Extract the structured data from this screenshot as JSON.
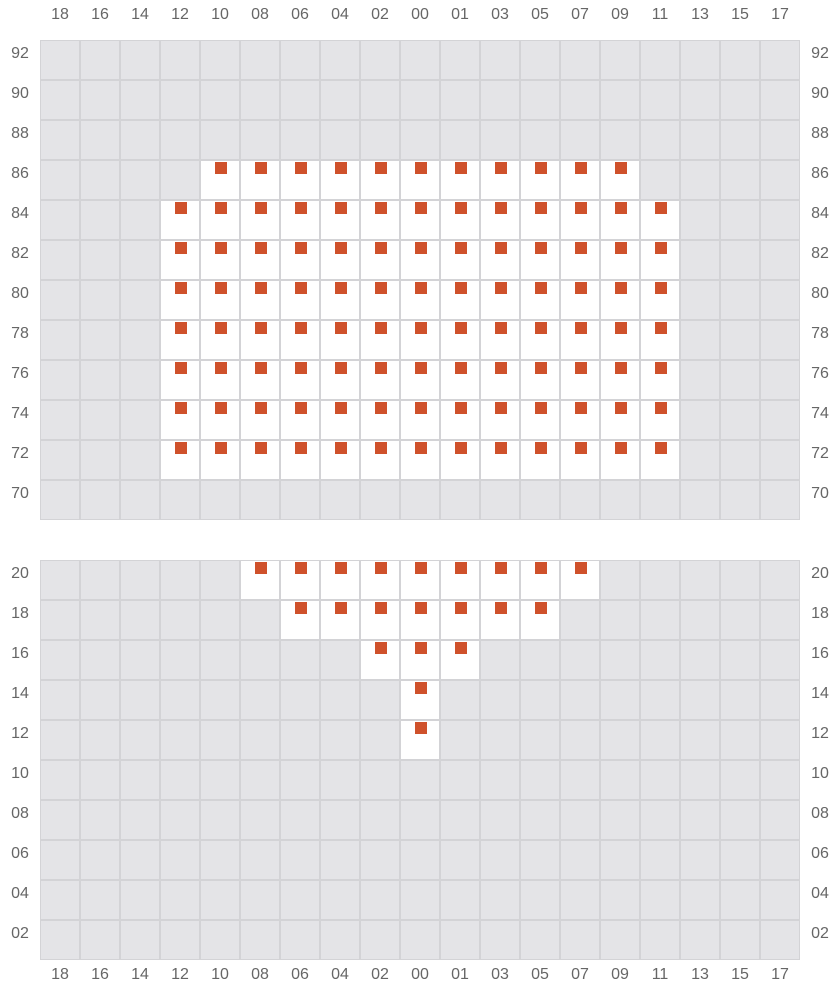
{
  "columns": [
    "18",
    "16",
    "14",
    "12",
    "10",
    "08",
    "06",
    "04",
    "02",
    "00",
    "01",
    "03",
    "05",
    "07",
    "09",
    "11",
    "13",
    "15",
    "17"
  ],
  "marker_color": "#cf512b",
  "sections": [
    {
      "name": "upper",
      "rows": [
        {
          "label": "92",
          "seats": []
        },
        {
          "label": "90",
          "seats": []
        },
        {
          "label": "88",
          "seats": []
        },
        {
          "label": "86",
          "seats": [
            "10",
            "08",
            "06",
            "04",
            "02",
            "00",
            "01",
            "03",
            "05",
            "07",
            "09"
          ]
        },
        {
          "label": "84",
          "seats": [
            "12",
            "10",
            "08",
            "06",
            "04",
            "02",
            "00",
            "01",
            "03",
            "05",
            "07",
            "09",
            "11"
          ]
        },
        {
          "label": "82",
          "seats": [
            "12",
            "10",
            "08",
            "06",
            "04",
            "02",
            "00",
            "01",
            "03",
            "05",
            "07",
            "09",
            "11"
          ]
        },
        {
          "label": "80",
          "seats": [
            "12",
            "10",
            "08",
            "06",
            "04",
            "02",
            "00",
            "01",
            "03",
            "05",
            "07",
            "09",
            "11"
          ]
        },
        {
          "label": "78",
          "seats": [
            "12",
            "10",
            "08",
            "06",
            "04",
            "02",
            "00",
            "01",
            "03",
            "05",
            "07",
            "09",
            "11"
          ]
        },
        {
          "label": "76",
          "seats": [
            "12",
            "10",
            "08",
            "06",
            "04",
            "02",
            "00",
            "01",
            "03",
            "05",
            "07",
            "09",
            "11"
          ]
        },
        {
          "label": "74",
          "seats": [
            "12",
            "10",
            "08",
            "06",
            "04",
            "02",
            "00",
            "01",
            "03",
            "05",
            "07",
            "09",
            "11"
          ]
        },
        {
          "label": "72",
          "seats": [
            "12",
            "10",
            "08",
            "06",
            "04",
            "02",
            "00",
            "01",
            "03",
            "05",
            "07",
            "09",
            "11"
          ]
        },
        {
          "label": "70",
          "seats": []
        }
      ]
    },
    {
      "name": "lower",
      "rows": [
        {
          "label": "20",
          "seats": [
            "08",
            "06",
            "04",
            "02",
            "00",
            "01",
            "03",
            "05",
            "07"
          ]
        },
        {
          "label": "18",
          "seats": [
            "06",
            "04",
            "02",
            "00",
            "01",
            "03",
            "05"
          ]
        },
        {
          "label": "16",
          "seats": [
            "02",
            "00",
            "01"
          ]
        },
        {
          "label": "14",
          "seats": [
            "00"
          ]
        },
        {
          "label": "12",
          "seats": [
            "00"
          ]
        },
        {
          "label": "10",
          "seats": []
        },
        {
          "label": "08",
          "seats": []
        },
        {
          "label": "06",
          "seats": []
        },
        {
          "label": "04",
          "seats": []
        },
        {
          "label": "02",
          "seats": []
        }
      ]
    }
  ]
}
